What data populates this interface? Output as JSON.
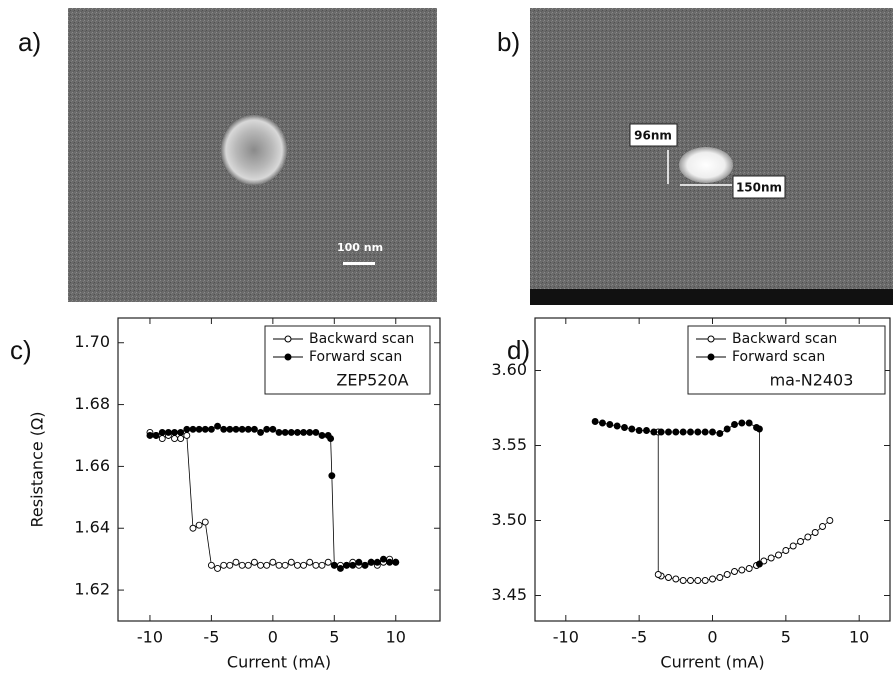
{
  "panels": [
    {
      "label": "a)",
      "scale_bar": "100 nm"
    },
    {
      "label": "b)",
      "height_label": "96nm",
      "width_label": "150nm"
    }
  ],
  "chart_data": [
    {
      "type": "scatter",
      "label": "c)",
      "x_label": "Current (mA)",
      "y_label": "Resistance (Ω)",
      "annotation": "ZEP520A",
      "xlim": [
        -12.6,
        13.6
      ],
      "xticks": [
        -10,
        -5,
        0,
        5,
        10
      ],
      "ylim": [
        1.61,
        1.708
      ],
      "yticks": [
        1.62,
        1.64,
        1.66,
        1.68,
        {
          "value": 1.7,
          "label": "1.70"
        }
      ],
      "series": [
        {
          "name": "Backward scan",
          "color": "#000000",
          "marker": "open",
          "x": [
            10,
            9.5,
            9,
            8.5,
            8,
            7.5,
            7,
            6.5,
            6,
            5.5,
            5,
            4.5,
            4,
            3.5,
            3,
            2.5,
            2,
            1.5,
            1,
            0.5,
            0,
            -0.5,
            -1,
            -1.5,
            -2,
            -2.5,
            -3,
            -3.5,
            -4,
            -4.5,
            -5,
            -5.5,
            -6,
            -6.5,
            -7,
            -7.5,
            -8,
            -8.5,
            -9,
            -9.5,
            -10
          ],
          "values": [
            1.629,
            1.63,
            1.629,
            1.628,
            1.629,
            1.628,
            1.628,
            1.629,
            1.628,
            1.628,
            1.628,
            1.629,
            1.628,
            1.628,
            1.629,
            1.628,
            1.628,
            1.629,
            1.628,
            1.628,
            1.629,
            1.628,
            1.628,
            1.629,
            1.628,
            1.628,
            1.629,
            1.628,
            1.628,
            1.627,
            1.628,
            1.642,
            1.641,
            1.64,
            1.67,
            1.669,
            1.669,
            1.67,
            1.669,
            1.67,
            1.671
          ]
        },
        {
          "name": "Forward scan",
          "color": "#000000",
          "marker": "filled",
          "x": [
            -10,
            -9.5,
            -9,
            -8.5,
            -8,
            -7.5,
            -7,
            -6.5,
            -6,
            -5.5,
            -5,
            -4.5,
            -4,
            -3.5,
            -3,
            -2.5,
            -2,
            -1.5,
            -1,
            -0.5,
            0,
            0.5,
            1,
            1.5,
            2,
            2.5,
            3,
            3.5,
            4,
            4.5,
            4.7,
            4.8,
            5,
            5.5,
            6,
            6.5,
            7,
            7.5,
            8,
            8.5,
            9,
            9.5,
            10
          ],
          "values": [
            1.67,
            1.67,
            1.671,
            1.671,
            1.671,
            1.671,
            1.672,
            1.672,
            1.672,
            1.672,
            1.672,
            1.673,
            1.672,
            1.672,
            1.672,
            1.672,
            1.672,
            1.672,
            1.671,
            1.672,
            1.672,
            1.671,
            1.671,
            1.671,
            1.671,
            1.671,
            1.671,
            1.671,
            1.67,
            1.67,
            1.669,
            1.657,
            1.628,
            1.627,
            1.628,
            1.628,
            1.629,
            1.628,
            1.629,
            1.629,
            1.63,
            1.629,
            1.629
          ]
        }
      ]
    },
    {
      "type": "scatter",
      "label": "d)",
      "x_label": "Current (mA)",
      "annotation": "ma-N2403",
      "xlim": [
        -12.1,
        12.1
      ],
      "xticks": [
        -10,
        -5,
        0,
        5,
        10
      ],
      "ylim": [
        3.433,
        3.635
      ],
      "yticks": [
        3.45,
        {
          "value": 3.5,
          "label": "3.50"
        },
        3.55,
        {
          "value": 3.6,
          "label": "3.60"
        }
      ],
      "series": [
        {
          "name": "Backward scan",
          "color": "#000000",
          "marker": "open",
          "x": [
            8,
            7.5,
            7,
            6.5,
            6,
            5.5,
            5,
            4.5,
            4,
            3.5,
            3,
            2.5,
            2,
            1.5,
            1,
            0.5,
            0,
            -0.5,
            -1,
            -1.5,
            -2,
            -2.5,
            -3,
            -3.5,
            -3.7,
            -3.7
          ],
          "values": [
            3.5,
            3.496,
            3.492,
            3.489,
            3.486,
            3.483,
            3.48,
            3.477,
            3.475,
            3.473,
            3.47,
            3.468,
            3.467,
            3.466,
            3.464,
            3.462,
            3.461,
            3.46,
            3.46,
            3.46,
            3.46,
            3.461,
            3.462,
            3.463,
            3.464,
            3.559
          ]
        },
        {
          "name": "Forward scan",
          "color": "#000000",
          "marker": "filled",
          "x": [
            -8,
            -7.5,
            -7,
            -6.5,
            -6,
            -5.5,
            -5,
            -4.5,
            -4,
            -3.5,
            -3,
            -2.5,
            -2,
            -1.5,
            -1,
            -0.5,
            0,
            0.5,
            1,
            1.5,
            2,
            2.5,
            3,
            3.2,
            3.2
          ],
          "values": [
            3.566,
            3.565,
            3.564,
            3.563,
            3.562,
            3.561,
            3.56,
            3.56,
            3.559,
            3.559,
            3.559,
            3.559,
            3.559,
            3.559,
            3.559,
            3.559,
            3.559,
            3.558,
            3.561,
            3.564,
            3.565,
            3.565,
            3.562,
            3.561,
            3.471
          ]
        }
      ]
    }
  ]
}
